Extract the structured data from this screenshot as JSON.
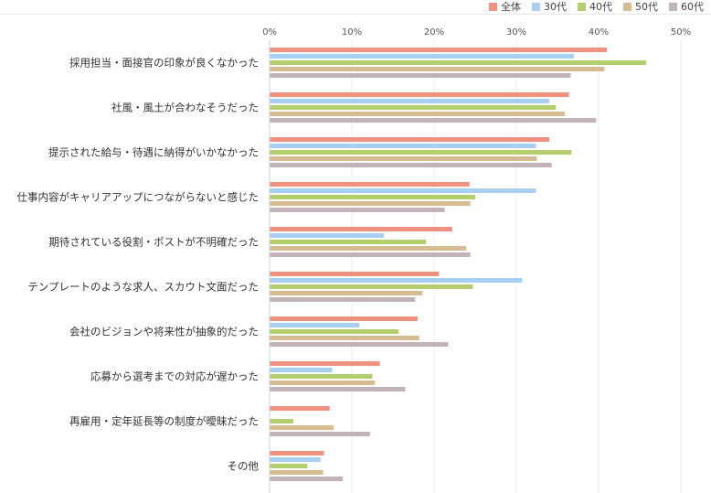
{
  "chart_data": {
    "type": "bar",
    "orientation": "horizontal",
    "categories": [
      "採用担当・面接官の印象が良くなかった",
      "社風・風土が合わなそうだった",
      "提示された給与・待遇に納得がいかなかった",
      "仕事内容がキャリアアップにつながらないと感じた",
      "期待されている役割・ポストが不明確だった",
      "テンプレートのような求人、スカウト文面だった",
      "会社のビジョンや将来性が抽象的だった",
      "応募から選考までの対応が遅かった",
      "再雇用・定年延長等の制度が曖昧だった",
      "その他"
    ],
    "series": [
      {
        "name": "全体",
        "color": "#f0907f",
        "values": [
          41.0,
          36.4,
          34.0,
          24.3,
          22.2,
          20.6,
          18.0,
          13.4,
          7.3,
          6.6
        ]
      },
      {
        "name": "30代",
        "color": "#a6cff2",
        "values": [
          37.0,
          34.0,
          32.4,
          32.4,
          13.9,
          30.7,
          10.9,
          7.6,
          0,
          6.2
        ]
      },
      {
        "name": "40代",
        "color": "#b4ce6e",
        "values": [
          45.8,
          34.8,
          36.7,
          25.0,
          19.0,
          24.7,
          15.7,
          12.5,
          2.9,
          4.6
        ]
      },
      {
        "name": "50代",
        "color": "#d6bc90",
        "values": [
          40.7,
          35.9,
          32.5,
          24.4,
          23.9,
          18.6,
          18.2,
          12.8,
          7.8,
          6.5
        ]
      },
      {
        "name": "60代",
        "color": "#c2b3b8",
        "values": [
          36.6,
          39.7,
          34.3,
          21.3,
          24.4,
          17.7,
          21.7,
          16.5,
          12.2,
          8.9
        ]
      }
    ],
    "x_ticks": [
      "0%",
      "10%",
      "20%",
      "30%",
      "40%",
      "50%"
    ],
    "xlim": [
      0,
      50
    ],
    "legend_position": "top-right",
    "grid": true
  }
}
